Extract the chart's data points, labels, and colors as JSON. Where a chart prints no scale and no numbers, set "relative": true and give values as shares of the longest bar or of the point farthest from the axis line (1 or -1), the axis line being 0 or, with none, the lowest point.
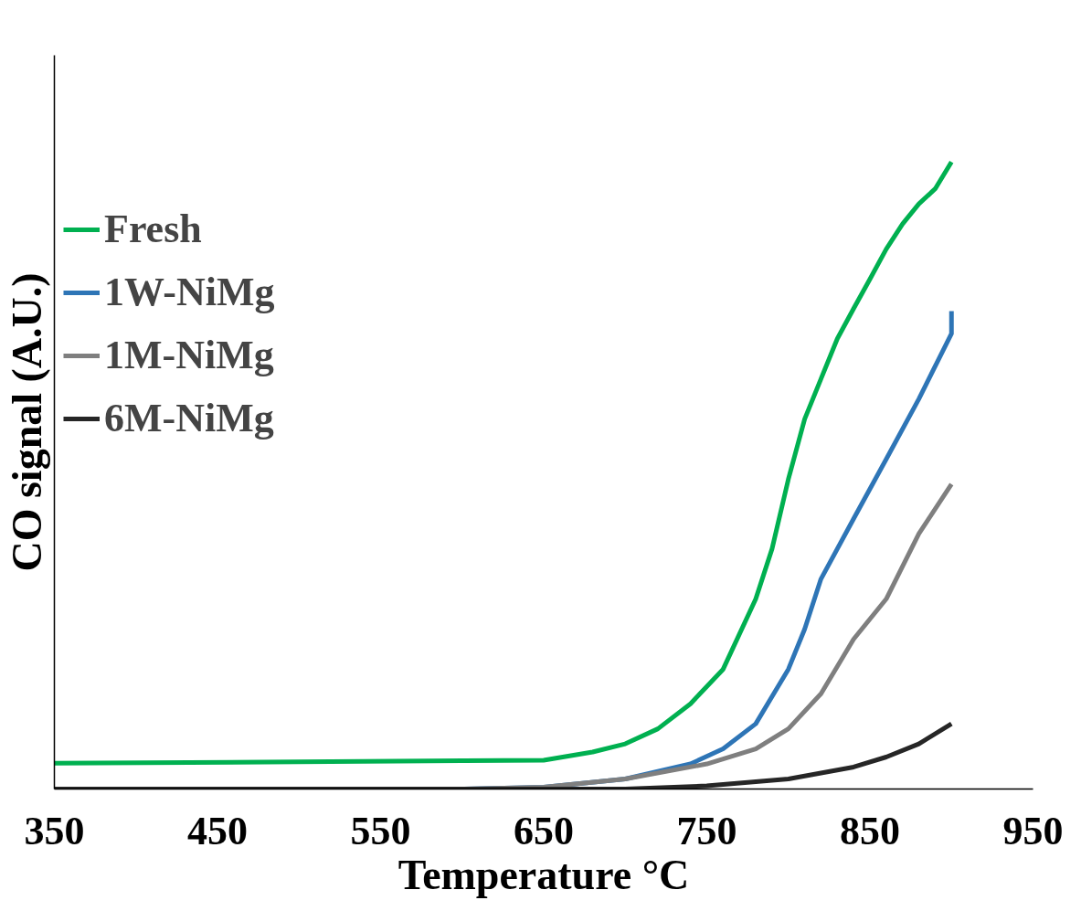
{
  "chart_data": {
    "type": "line",
    "relative": true,
    "xlabel": "Temperature °C",
    "ylabel": "CO signal (A.U.)",
    "xlim": [
      350,
      950
    ],
    "xticks": [
      350,
      450,
      550,
      650,
      750,
      850,
      950
    ],
    "grid": false,
    "legend": "left",
    "marker": "none",
    "line_style": "solid",
    "series": [
      {
        "name": "Fresh",
        "color": "#00b050",
        "x": [
          350,
          600,
          650,
          680,
          700,
          720,
          740,
          760,
          780,
          790,
          800,
          810,
          820,
          830,
          840,
          850,
          860,
          870,
          880,
          890,
          900
        ],
        "values": [
          0.041,
          0.045,
          0.046,
          0.059,
          0.072,
          0.096,
          0.136,
          0.191,
          0.303,
          0.383,
          0.494,
          0.59,
          0.654,
          0.718,
          0.766,
          0.813,
          0.861,
          0.901,
          0.933,
          0.957,
          1.0
        ]
      },
      {
        "name": "1W-NiMg",
        "color": "#2e75b6",
        "x": [
          350,
          600,
          650,
          700,
          740,
          760,
          780,
          800,
          810,
          820,
          840,
          860,
          880,
          900,
          900
        ],
        "values": [
          0,
          0,
          0.003,
          0.016,
          0.04,
          0.064,
          0.104,
          0.191,
          0.255,
          0.335,
          0.431,
          0.526,
          0.622,
          0.726,
          0.762
        ]
      },
      {
        "name": "1M-NiMg",
        "color": "#7f7f7f",
        "x": [
          350,
          600,
          650,
          700,
          750,
          780,
          800,
          820,
          840,
          860,
          880,
          900
        ],
        "values": [
          0,
          0,
          0.003,
          0.016,
          0.04,
          0.064,
          0.096,
          0.152,
          0.239,
          0.303,
          0.407,
          0.486
        ]
      },
      {
        "name": "6M-NiMg",
        "color": "#262626",
        "x": [
          350,
          600,
          700,
          750,
          800,
          840,
          860,
          880,
          900
        ],
        "values": [
          0,
          0,
          0,
          0.005,
          0.016,
          0.035,
          0.051,
          0.072,
          0.104
        ]
      }
    ]
  }
}
